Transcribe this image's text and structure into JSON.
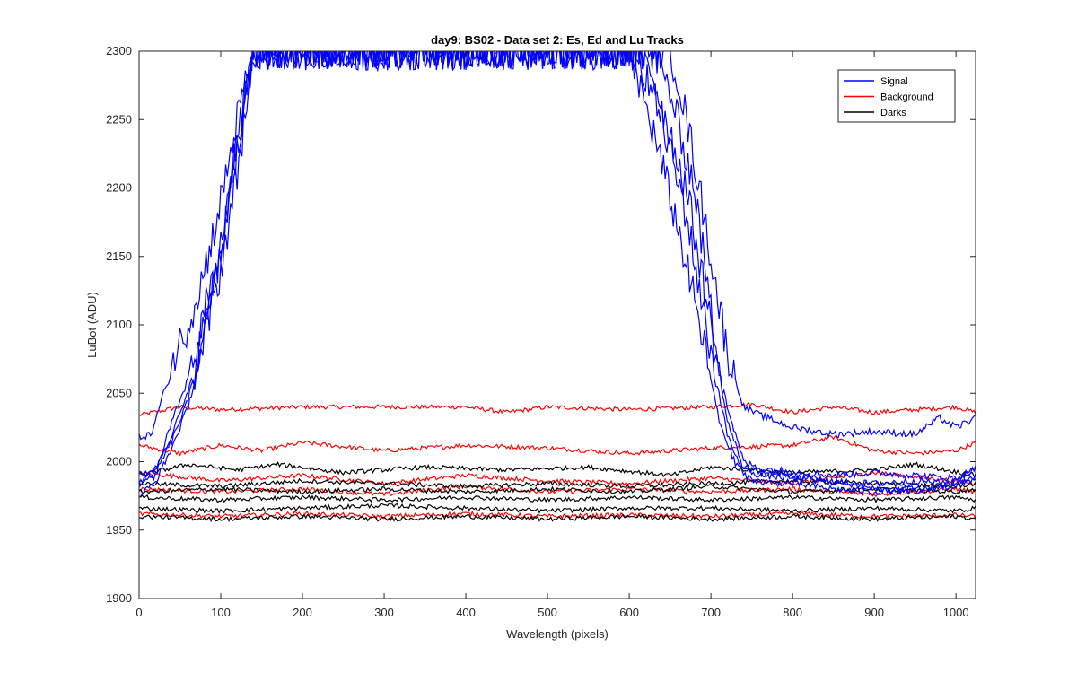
{
  "chart_data": {
    "type": "line",
    "title": "day9: BS02 - Data set 2: Es, Ed and Lu Tracks",
    "xlabel": "Wavelength (pixels)",
    "ylabel": "LuBot (ADU)",
    "xlim": [
      0,
      1024
    ],
    "ylim": [
      1900,
      2300
    ],
    "x_ticks": [
      0,
      100,
      200,
      300,
      400,
      500,
      600,
      700,
      800,
      900,
      1000
    ],
    "y_ticks": [
      1900,
      1950,
      2000,
      2050,
      2100,
      2150,
      2200,
      2250,
      2300
    ],
    "grid": false,
    "legend": {
      "placement": "top-right",
      "entries": [
        {
          "label": "Signal",
          "color": "#0000ff"
        },
        {
          "label": "Background",
          "color": "#ff0000"
        },
        {
          "label": "Darks",
          "color": "#000000"
        }
      ]
    },
    "series": [
      {
        "group": "Signal",
        "color": "#0000ff",
        "points": [
          [
            0,
            2018
          ],
          [
            15,
            2020
          ],
          [
            30,
            2050
          ],
          [
            45,
            2080
          ],
          [
            60,
            2100
          ],
          [
            80,
            2140
          ],
          [
            100,
            2190
          ],
          [
            120,
            2250
          ],
          [
            140,
            2300
          ],
          [
            650,
            2300
          ],
          [
            660,
            2280
          ],
          [
            680,
            2220
          ],
          [
            700,
            2150
          ],
          [
            720,
            2080
          ],
          [
            740,
            2040
          ],
          [
            760,
            2034
          ],
          [
            800,
            2025
          ],
          [
            850,
            2020
          ],
          [
            900,
            2022
          ],
          [
            950,
            2020
          ],
          [
            980,
            2032
          ],
          [
            1000,
            2025
          ],
          [
            1024,
            2032
          ]
        ]
      },
      {
        "group": "Signal",
        "color": "#0000ff",
        "points": [
          [
            0,
            1982
          ],
          [
            20,
            1990
          ],
          [
            40,
            2030
          ],
          [
            60,
            2060
          ],
          [
            80,
            2110
          ],
          [
            100,
            2150
          ],
          [
            120,
            2230
          ],
          [
            140,
            2300
          ],
          [
            630,
            2300
          ],
          [
            650,
            2270
          ],
          [
            680,
            2200
          ],
          [
            700,
            2110
          ],
          [
            720,
            2040
          ],
          [
            740,
            2000
          ],
          [
            760,
            1995
          ],
          [
            800,
            1993
          ],
          [
            850,
            1990
          ],
          [
            900,
            1992
          ],
          [
            950,
            1990
          ],
          [
            1000,
            1988
          ],
          [
            1024,
            1995
          ]
        ]
      },
      {
        "group": "Signal",
        "color": "#0000ff",
        "points": [
          [
            0,
            1975
          ],
          [
            20,
            1985
          ],
          [
            40,
            2010
          ],
          [
            60,
            2040
          ],
          [
            80,
            2090
          ],
          [
            100,
            2140
          ],
          [
            120,
            2210
          ],
          [
            140,
            2300
          ],
          [
            620,
            2300
          ],
          [
            640,
            2260
          ],
          [
            670,
            2200
          ],
          [
            700,
            2100
          ],
          [
            720,
            2030
          ],
          [
            740,
            1995
          ],
          [
            760,
            1990
          ],
          [
            800,
            1988
          ],
          [
            850,
            1985
          ],
          [
            900,
            1984
          ],
          [
            950,
            1986
          ],
          [
            1000,
            1984
          ],
          [
            1024,
            1990
          ]
        ]
      },
      {
        "group": "Signal",
        "color": "#0000ff",
        "points": [
          [
            0,
            1990
          ],
          [
            20,
            1995
          ],
          [
            40,
            2020
          ],
          [
            60,
            2050
          ],
          [
            80,
            2100
          ],
          [
            100,
            2160
          ],
          [
            120,
            2240
          ],
          [
            140,
            2300
          ],
          [
            610,
            2300
          ],
          [
            640,
            2250
          ],
          [
            670,
            2180
          ],
          [
            700,
            2080
          ],
          [
            720,
            2020
          ],
          [
            740,
            1990
          ],
          [
            760,
            1985
          ],
          [
            800,
            1984
          ],
          [
            850,
            1980
          ],
          [
            900,
            1978
          ],
          [
            950,
            1980
          ],
          [
            1000,
            1982
          ],
          [
            1024,
            1988
          ]
        ]
      },
      {
        "group": "Signal",
        "color": "#0000ff",
        "points": [
          [
            0,
            1985
          ],
          [
            20,
            1992
          ],
          [
            40,
            2015
          ],
          [
            60,
            2045
          ],
          [
            80,
            2095
          ],
          [
            100,
            2150
          ],
          [
            120,
            2225
          ],
          [
            140,
            2300
          ],
          [
            600,
            2300
          ],
          [
            630,
            2240
          ],
          [
            660,
            2170
          ],
          [
            690,
            2090
          ],
          [
            710,
            2030
          ],
          [
            730,
            1998
          ],
          [
            760,
            1992
          ],
          [
            800,
            1990
          ],
          [
            850,
            1986
          ],
          [
            900,
            1980
          ],
          [
            950,
            1978
          ],
          [
            1000,
            1986
          ],
          [
            1024,
            1996
          ]
        ]
      },
      {
        "group": "Background",
        "color": "#ff0000",
        "points": [
          [
            0,
            2034
          ],
          [
            50,
            2040
          ],
          [
            100,
            2038
          ],
          [
            200,
            2040
          ],
          [
            300,
            2040
          ],
          [
            400,
            2040
          ],
          [
            450,
            2036
          ],
          [
            500,
            2040
          ],
          [
            600,
            2038
          ],
          [
            700,
            2040
          ],
          [
            750,
            2042
          ],
          [
            800,
            2036
          ],
          [
            850,
            2040
          ],
          [
            900,
            2036
          ],
          [
            950,
            2038
          ],
          [
            1000,
            2040
          ],
          [
            1024,
            2036
          ]
        ]
      },
      {
        "group": "Background",
        "color": "#ff0000",
        "points": [
          [
            0,
            2012
          ],
          [
            50,
            2006
          ],
          [
            100,
            2012
          ],
          [
            150,
            2008
          ],
          [
            200,
            2014
          ],
          [
            300,
            2008
          ],
          [
            400,
            2012
          ],
          [
            500,
            2010
          ],
          [
            600,
            2006
          ],
          [
            700,
            2010
          ],
          [
            800,
            2012
          ],
          [
            850,
            2018
          ],
          [
            900,
            2008
          ],
          [
            950,
            2006
          ],
          [
            1000,
            2008
          ],
          [
            1024,
            2014
          ]
        ]
      },
      {
        "group": "Background",
        "color": "#ff0000",
        "points": [
          [
            0,
            1992
          ],
          [
            100,
            1986
          ],
          [
            200,
            1990
          ],
          [
            300,
            1984
          ],
          [
            400,
            1990
          ],
          [
            500,
            1986
          ],
          [
            600,
            1984
          ],
          [
            700,
            1988
          ],
          [
            800,
            1984
          ],
          [
            900,
            1992
          ],
          [
            1000,
            1986
          ],
          [
            1024,
            1984
          ]
        ]
      },
      {
        "group": "Background",
        "color": "#ff0000",
        "points": [
          [
            0,
            1980
          ],
          [
            100,
            1978
          ],
          [
            200,
            1980
          ],
          [
            300,
            1976
          ],
          [
            400,
            1982
          ],
          [
            500,
            1978
          ],
          [
            600,
            1980
          ],
          [
            700,
            1978
          ],
          [
            800,
            1980
          ],
          [
            900,
            1976
          ],
          [
            1000,
            1980
          ],
          [
            1024,
            1978
          ]
        ]
      },
      {
        "group": "Background",
        "color": "#ff0000",
        "points": [
          [
            0,
            1962
          ],
          [
            100,
            1960
          ],
          [
            200,
            1962
          ],
          [
            300,
            1960
          ],
          [
            400,
            1962
          ],
          [
            500,
            1960
          ],
          [
            600,
            1961
          ],
          [
            700,
            1960
          ],
          [
            800,
            1962
          ],
          [
            900,
            1960
          ],
          [
            1000,
            1961
          ],
          [
            1024,
            1960
          ]
        ]
      },
      {
        "group": "Darks",
        "color": "#000000",
        "points": [
          [
            0,
            1990
          ],
          [
            60,
            1998
          ],
          [
            120,
            1994
          ],
          [
            170,
            1998
          ],
          [
            250,
            1992
          ],
          [
            350,
            1996
          ],
          [
            450,
            1994
          ],
          [
            550,
            1996
          ],
          [
            650,
            1990
          ],
          [
            700,
            1996
          ],
          [
            800,
            1992
          ],
          [
            900,
            1994
          ],
          [
            950,
            1998
          ],
          [
            1024,
            1990
          ]
        ]
      },
      {
        "group": "Darks",
        "color": "#000000",
        "points": [
          [
            0,
            1984
          ],
          [
            100,
            1982
          ],
          [
            200,
            1986
          ],
          [
            300,
            1984
          ],
          [
            400,
            1982
          ],
          [
            500,
            1984
          ],
          [
            600,
            1982
          ],
          [
            700,
            1984
          ],
          [
            800,
            1986
          ],
          [
            900,
            1984
          ],
          [
            1000,
            1982
          ],
          [
            1024,
            1984
          ]
        ]
      },
      {
        "group": "Darks",
        "color": "#000000",
        "points": [
          [
            0,
            1978
          ],
          [
            100,
            1980
          ],
          [
            200,
            1978
          ],
          [
            300,
            1980
          ],
          [
            400,
            1978
          ],
          [
            500,
            1980
          ],
          [
            600,
            1978
          ],
          [
            700,
            1982
          ],
          [
            800,
            1978
          ],
          [
            900,
            1980
          ],
          [
            1000,
            1978
          ],
          [
            1024,
            1980
          ]
        ]
      },
      {
        "group": "Darks",
        "color": "#000000",
        "points": [
          [
            0,
            1974
          ],
          [
            100,
            1972
          ],
          [
            200,
            1974
          ],
          [
            300,
            1972
          ],
          [
            400,
            1974
          ],
          [
            500,
            1972
          ],
          [
            600,
            1974
          ],
          [
            700,
            1972
          ],
          [
            800,
            1974
          ],
          [
            900,
            1972
          ],
          [
            1000,
            1974
          ],
          [
            1024,
            1972
          ]
        ]
      },
      {
        "group": "Darks",
        "color": "#000000",
        "points": [
          [
            0,
            1966
          ],
          [
            100,
            1964
          ],
          [
            200,
            1966
          ],
          [
            300,
            1968
          ],
          [
            400,
            1966
          ],
          [
            500,
            1964
          ],
          [
            600,
            1966
          ],
          [
            700,
            1966
          ],
          [
            800,
            1964
          ],
          [
            900,
            1966
          ],
          [
            1000,
            1964
          ],
          [
            1024,
            1966
          ]
        ]
      },
      {
        "group": "Darks",
        "color": "#000000",
        "points": [
          [
            0,
            1960
          ],
          [
            100,
            1958
          ],
          [
            200,
            1960
          ],
          [
            300,
            1958
          ],
          [
            400,
            1960
          ],
          [
            500,
            1958
          ],
          [
            600,
            1960
          ],
          [
            700,
            1958
          ],
          [
            800,
            1960
          ],
          [
            900,
            1958
          ],
          [
            1000,
            1960
          ],
          [
            1024,
            1958
          ]
        ]
      }
    ]
  }
}
